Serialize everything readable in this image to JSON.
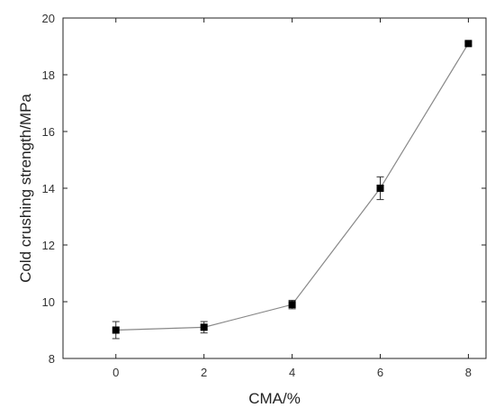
{
  "chart_data": {
    "type": "line",
    "title": "",
    "xlabel": "CMA/%",
    "ylabel": "Cold crushing strength/MPa",
    "xlim": [
      -1.2,
      8.4
    ],
    "ylim": [
      8,
      20
    ],
    "xticks": [
      0,
      2,
      4,
      6,
      8
    ],
    "yticks": [
      8,
      10,
      12,
      14,
      16,
      18,
      20
    ],
    "grid": false,
    "legend": "none",
    "colors": {
      "line": "#888888",
      "marker": "#000000",
      "axis": "#222222"
    },
    "series": [
      {
        "x": [
          0,
          2,
          4,
          6,
          8
        ],
        "y": [
          9.0,
          9.1,
          9.9,
          14.0,
          19.1
        ],
        "error": [
          0.3,
          0.2,
          0.15,
          0.4,
          0.05
        ]
      }
    ]
  }
}
